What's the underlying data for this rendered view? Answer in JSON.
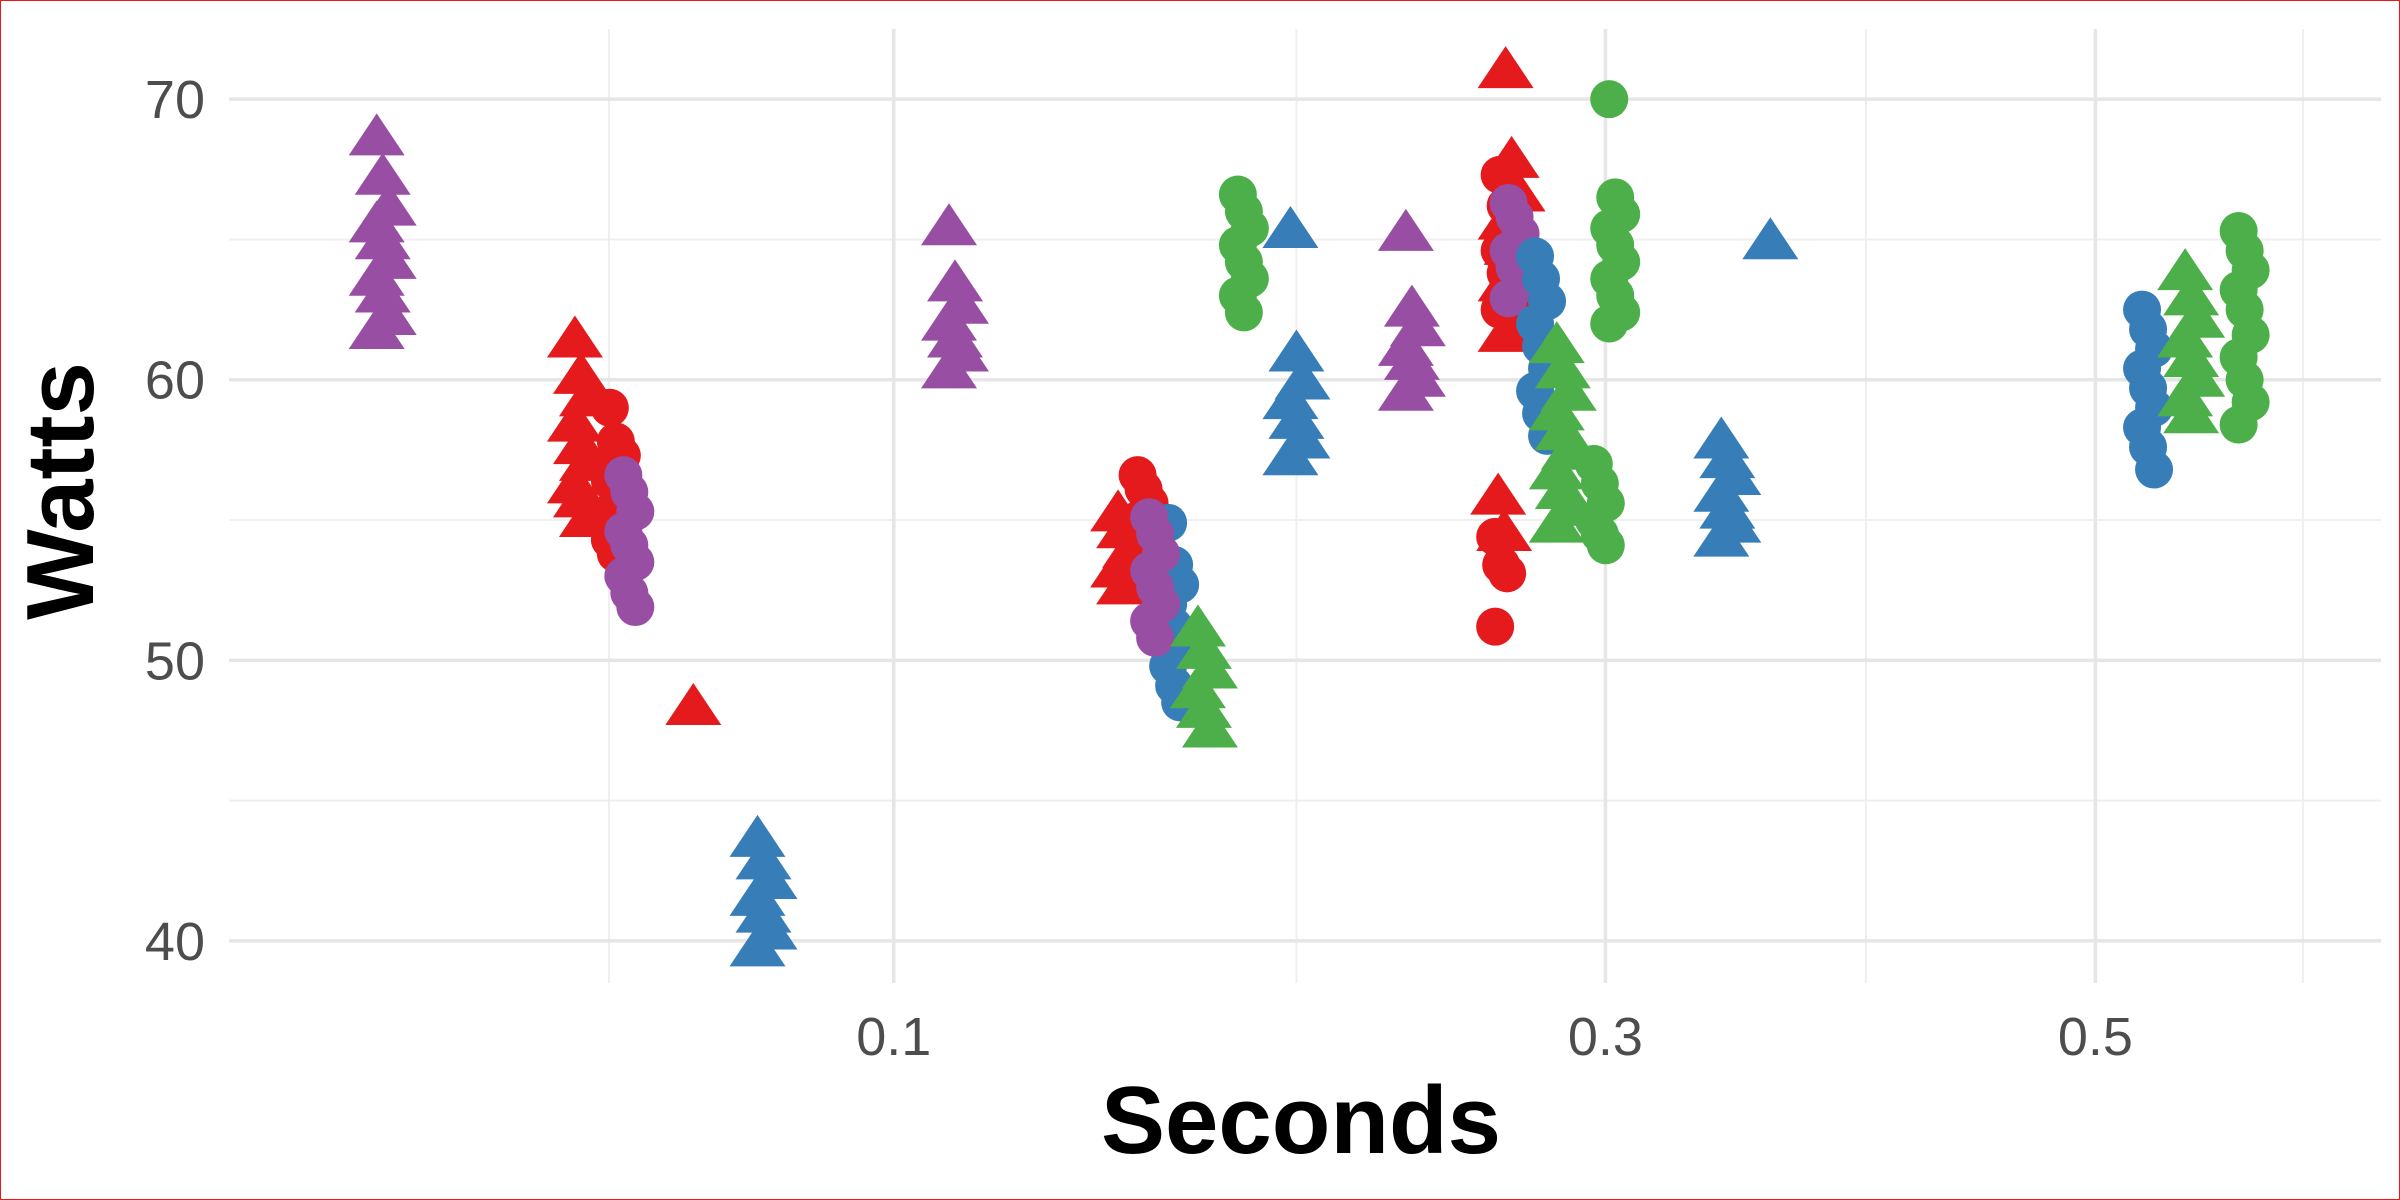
{
  "chart_data": {
    "type": "scatter",
    "xlabel": "Seconds",
    "ylabel": "Watts",
    "x_scale": "sqrt",
    "xlim": [
      0.01,
      0.64
    ],
    "ylim": [
      38.5,
      72.5
    ],
    "x_ticks": [
      0.1,
      0.3,
      0.5
    ],
    "x_tick_labels": [
      "0.1",
      "0.3",
      "0.5"
    ],
    "x_minor_ticks": [
      0.05,
      0.2,
      0.4,
      0.6
    ],
    "y_ticks": [
      40,
      50,
      60,
      70
    ],
    "y_tick_labels": [
      "40",
      "50",
      "60",
      "70"
    ],
    "y_minor_ticks": [
      45,
      55,
      65
    ],
    "grid": true,
    "legend": "none",
    "colors": {
      "red": "#e41a1c",
      "blue": "#377eb8",
      "green": "#4daf4a",
      "purple": "#984ea3"
    },
    "groups": [
      {
        "color": "purple",
        "shape": "triangle",
        "x": 0.0225,
        "y": [
          68.6,
          67.2,
          66.1,
          65.5,
          64.9,
          64.2,
          63.6,
          63.0,
          62.2,
          61.7
        ]
      },
      {
        "color": "red",
        "shape": "triangle",
        "x": 0.046,
        "y": [
          61.4,
          60.1,
          59.3,
          58.4,
          57.6,
          57.0,
          56.2,
          55.7,
          55.0
        ]
      },
      {
        "color": "red",
        "shape": "circle",
        "x": 0.051,
        "y": [
          59.0,
          57.8,
          57.3,
          56.4,
          55.5,
          55.0,
          54.3,
          53.8
        ]
      },
      {
        "color": "purple",
        "shape": "circle",
        "x": 0.053,
        "y": [
          56.6,
          56.0,
          55.3,
          54.6,
          54.1,
          53.5,
          53.0,
          52.4,
          51.9
        ]
      },
      {
        "color": "red",
        "shape": "triangle",
        "x": 0.064,
        "y": [
          48.3
        ]
      },
      {
        "color": "blue",
        "shape": "triangle",
        "x": 0.075,
        "y": [
          43.6,
          42.8,
          42.1,
          41.5,
          40.9,
          40.3,
          39.7
        ]
      },
      {
        "color": "purple",
        "shape": "triangle",
        "x": 0.113,
        "y": [
          65.4,
          63.4,
          62.6,
          62.0,
          61.4,
          60.9,
          60.3
        ]
      },
      {
        "color": "red",
        "shape": "triangle",
        "x": 0.153,
        "y": [
          55.2,
          54.6,
          53.9,
          53.2,
          52.6
        ]
      },
      {
        "color": "red",
        "shape": "circle",
        "x": 0.158,
        "y": [
          56.6,
          56.1,
          55.6,
          55.0,
          54.4,
          53.8,
          53.3
        ]
      },
      {
        "color": "blue",
        "shape": "circle",
        "x": 0.166,
        "y": [
          54.9,
          53.4,
          52.7,
          52.0,
          51.2,
          50.5,
          49.8,
          49.1,
          48.5
        ]
      },
      {
        "color": "purple",
        "shape": "circle",
        "x": 0.161,
        "y": [
          55.1,
          54.5,
          53.8,
          53.2,
          52.6,
          52.0,
          51.4,
          50.8
        ]
      },
      {
        "color": "green",
        "shape": "triangle",
        "x": 0.174,
        "y": [
          51.1,
          50.3,
          49.6,
          48.9,
          48.2,
          47.5
        ]
      },
      {
        "color": "green",
        "shape": "circle",
        "x": 0.185,
        "y": [
          66.6,
          66.0,
          65.4,
          64.8,
          64.2,
          63.6,
          63.0,
          62.4
        ]
      },
      {
        "color": "blue",
        "shape": "triangle",
        "x": 0.2,
        "y": [
          65.3,
          60.9,
          59.9,
          59.2,
          58.5,
          57.8,
          57.2
        ]
      },
      {
        "color": "purple",
        "shape": "triangle",
        "x": 0.235,
        "y": [
          65.2,
          62.5,
          61.8,
          61.1,
          60.6,
          60.0,
          59.5
        ]
      },
      {
        "color": "red",
        "shape": "triangle",
        "x": 0.2675,
        "y": [
          71.0,
          67.8,
          66.6,
          65.6,
          64.7,
          64.0,
          63.4,
          62.8,
          62.2,
          61.6
        ]
      },
      {
        "color": "red",
        "shape": "triangle",
        "x": 0.265,
        "y": [
          55.8,
          54.5
        ]
      },
      {
        "color": "red",
        "shape": "circle",
        "x": 0.264,
        "y": [
          54.4,
          53.4,
          53.1,
          51.2
        ]
      },
      {
        "color": "red",
        "shape": "circle",
        "x": 0.2655,
        "y": [
          67.3,
          66.2,
          65.4,
          64.6,
          63.8,
          63.1,
          62.5
        ]
      },
      {
        "color": "purple",
        "shape": "circle",
        "x": 0.2685,
        "y": [
          66.3,
          65.8,
          65.2,
          64.6,
          64.0,
          63.4,
          62.9
        ]
      },
      {
        "color": "blue",
        "shape": "circle",
        "x": 0.2775,
        "y": [
          64.4,
          63.6,
          62.8,
          62.0,
          61.2,
          60.4,
          59.6,
          58.8,
          58.0
        ]
      },
      {
        "color": "green",
        "shape": "triangle",
        "x": 0.285,
        "y": [
          61.2,
          60.3,
          59.5,
          58.8,
          58.1,
          57.4,
          56.7,
          56.0,
          55.4,
          54.8
        ]
      },
      {
        "color": "green",
        "shape": "circle",
        "x": 0.298,
        "y": [
          57.0,
          56.3,
          55.6,
          55.0,
          54.5,
          54.1
        ]
      },
      {
        "color": "green",
        "shape": "circle",
        "x": 0.3035,
        "y": [
          70.0,
          66.5,
          65.9,
          65.4,
          64.8,
          64.2,
          63.6,
          63.0,
          62.4,
          62.0
        ]
      },
      {
        "color": "blue",
        "shape": "triangle",
        "x": 0.345,
        "y": [
          57.8,
          57.1,
          56.5,
          55.9,
          55.3,
          54.8,
          54.3
        ]
      },
      {
        "color": "blue",
        "shape": "triangle",
        "x": 0.364,
        "y": [
          64.9
        ]
      },
      {
        "color": "blue",
        "shape": "circle",
        "x": 0.5245,
        "y": [
          62.5,
          61.8,
          61.1,
          60.4,
          59.7,
          59.0,
          58.3,
          57.6,
          56.8
        ]
      },
      {
        "color": "green",
        "shape": "triangle",
        "x": 0.545,
        "y": [
          63.8,
          62.9,
          62.1,
          61.4,
          60.7,
          60.0,
          59.3,
          58.7
        ]
      },
      {
        "color": "green",
        "shape": "circle",
        "x": 0.571,
        "y": [
          65.3,
          64.6,
          63.9,
          63.2,
          62.5,
          61.6,
          60.8,
          60.0,
          59.2,
          58.4
        ]
      }
    ]
  }
}
